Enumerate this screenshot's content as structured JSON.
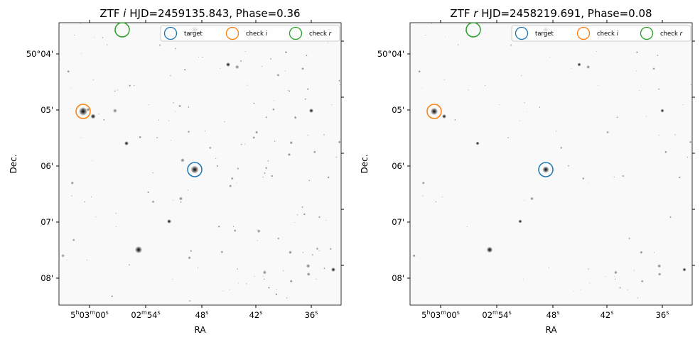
{
  "panels": [
    {
      "title": {
        "survey": "ZTF",
        "band": "i",
        "rest": "HJD=2459135.843, Phase=0.36"
      },
      "xlabel": "RA",
      "ylabel": "Dec.",
      "xticks": [
        [
          "5",
          "h",
          "03",
          "m",
          "00",
          "s"
        ],
        [
          "02",
          "m",
          "54",
          "s"
        ],
        [
          "48",
          "s"
        ],
        [
          "42",
          "s"
        ],
        [
          "36",
          "s"
        ]
      ],
      "yticks": [
        "50°04'",
        "05'",
        "06'",
        "07'",
        "08'"
      ],
      "legend": [
        {
          "text": "target"
        },
        {
          "text": "check ",
          "band": "i"
        },
        {
          "text": "check ",
          "band": "r"
        }
      ]
    },
    {
      "title": {
        "survey": "ZTF",
        "band": "r",
        "rest": "HJD=2458219.691, Phase=0.08"
      },
      "xlabel": "RA",
      "ylabel": "Dec.",
      "xticks": [
        [
          "5",
          "h",
          "03",
          "m",
          "00",
          "s"
        ],
        [
          "02",
          "m",
          "54",
          "s"
        ],
        [
          "48",
          "s"
        ],
        [
          "42",
          "s"
        ],
        [
          "36",
          "s"
        ]
      ],
      "yticks": [
        "50°04'",
        "05'",
        "06'",
        "07'",
        "08'"
      ],
      "legend": [
        {
          "text": "target"
        },
        {
          "text": "check ",
          "band": "i"
        },
        {
          "text": "check ",
          "band": "r"
        }
      ]
    }
  ]
}
